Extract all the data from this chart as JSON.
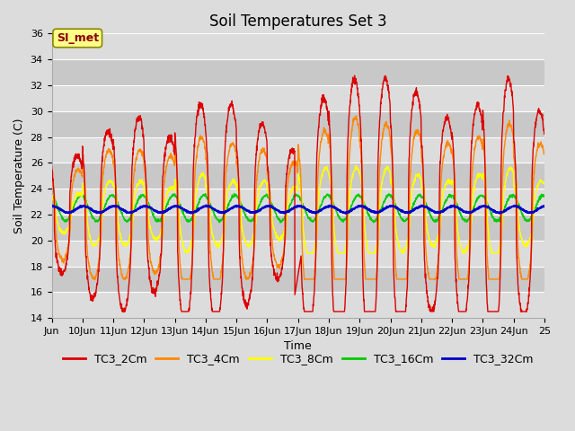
{
  "title": "Soil Temperatures Set 3",
  "xlabel": "Time",
  "ylabel": "Soil Temperature (C)",
  "ylim": [
    14,
    36
  ],
  "yticks": [
    14,
    16,
    18,
    20,
    22,
    24,
    26,
    28,
    30,
    32,
    34,
    36
  ],
  "xlim": [
    9,
    25
  ],
  "x_tick_positions": [
    9,
    10,
    11,
    12,
    13,
    14,
    15,
    16,
    17,
    18,
    19,
    20,
    21,
    22,
    23,
    24,
    25
  ],
  "x_tick_labels": [
    "Jun",
    "10Jun",
    "11Jun",
    "12Jun",
    "13Jun",
    "14Jun",
    "15Jun",
    "16Jun",
    "17Jun",
    "18Jun",
    "19Jun",
    "20Jun",
    "21Jun",
    "22Jun",
    "23Jun",
    "24Jun",
    "25"
  ],
  "series_colors": [
    "#dd0000",
    "#ff8800",
    "#ffff00",
    "#00cc00",
    "#0000cc"
  ],
  "series_names": [
    "TC3_2Cm",
    "TC3_4Cm",
    "TC3_8Cm",
    "TC3_16Cm",
    "TC3_32Cm"
  ],
  "bg_light": "#dcdcdc",
  "bg_dark": "#c8c8c8",
  "grid_color": "#ffffff",
  "annotation_text": "SI_met",
  "annotation_bg": "#ffff88",
  "annotation_border": "#888800",
  "annotation_text_color": "#880000",
  "title_fontsize": 12,
  "axis_label_fontsize": 9,
  "tick_fontsize": 8,
  "legend_fontsize": 9,
  "points_per_day": 144,
  "num_days": 16
}
